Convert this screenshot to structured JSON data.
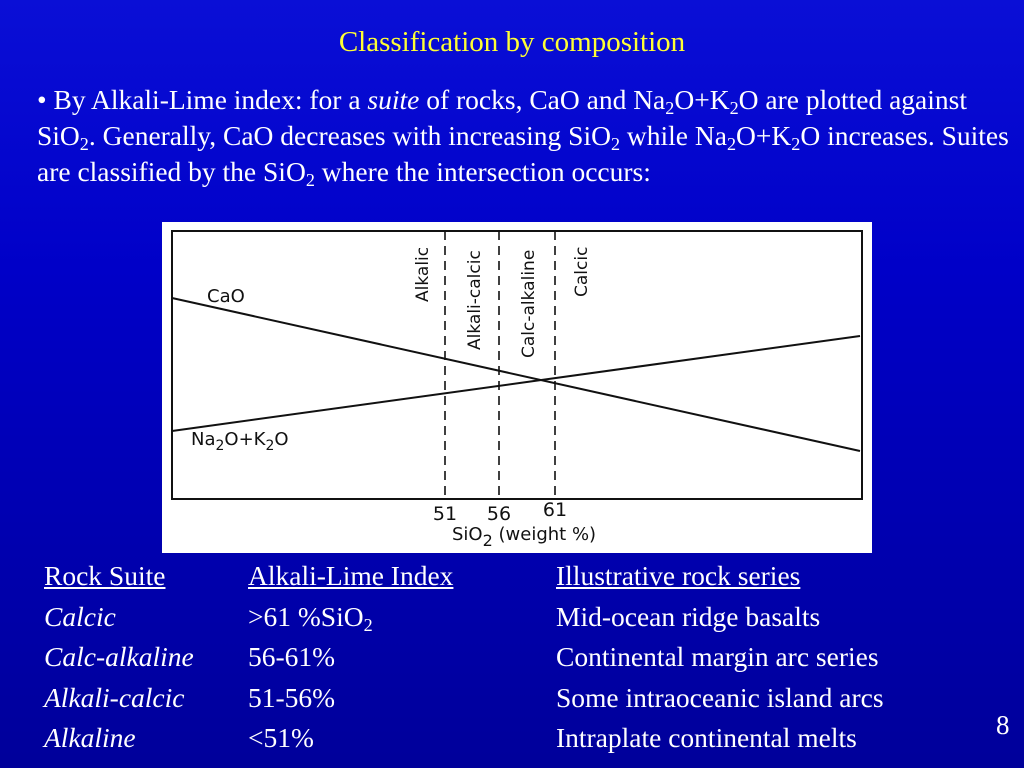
{
  "slide": {
    "title": "Classification by composition",
    "page_number": "8"
  },
  "bullet": {
    "marker": "•",
    "t1": " By Alkali-Lime index: for a ",
    "t2": "suite",
    "t3": " of rocks, CaO and Na",
    "s1": "2",
    "t4": "O+K",
    "s2": "2",
    "t5": "O are plotted against SiO",
    "s3": "2",
    "t6": ". Generally, CaO decreases with increasing SiO",
    "s4": "2",
    "t7": " while Na",
    "s5": "2",
    "t8": "O+K",
    "s6": "2",
    "t9": "O increases. Suites are classified by the SiO",
    "s7": "2",
    "t10": " where the intersection occurs:"
  },
  "diagram": {
    "cao_label": "CaO",
    "alk_label": {
      "a": "Na",
      "sa": "2",
      "b": "O+K",
      "sb": "2",
      "c": "O"
    },
    "zones": [
      "Alkalic",
      "Alkali-calcic",
      "Calc-alkaline",
      "Calcic"
    ],
    "ticks": [
      "51",
      "56",
      "61"
    ],
    "xlabel": {
      "a": "SiO",
      "sub": "2",
      "b": " (weight %)"
    }
  },
  "table": {
    "header": [
      "Rock Suite",
      "Alkali-Lime Index",
      "Illustrative rock series"
    ],
    "rows": [
      {
        "suite": "Calcic",
        "index": ">61 %SiO",
        "index_sub": "2",
        "series": "Mid-ocean ridge basalts"
      },
      {
        "suite": "Calc-alkaline",
        "index": "56-61%",
        "series": "Continental margin arc series"
      },
      {
        "suite": "Alkali-calcic",
        "index": "51-56%",
        "series": "Some intraoceanic island arcs"
      },
      {
        "suite": "Alkaline",
        "index": "<51%",
        "series": "Intraplate continental melts"
      }
    ]
  }
}
